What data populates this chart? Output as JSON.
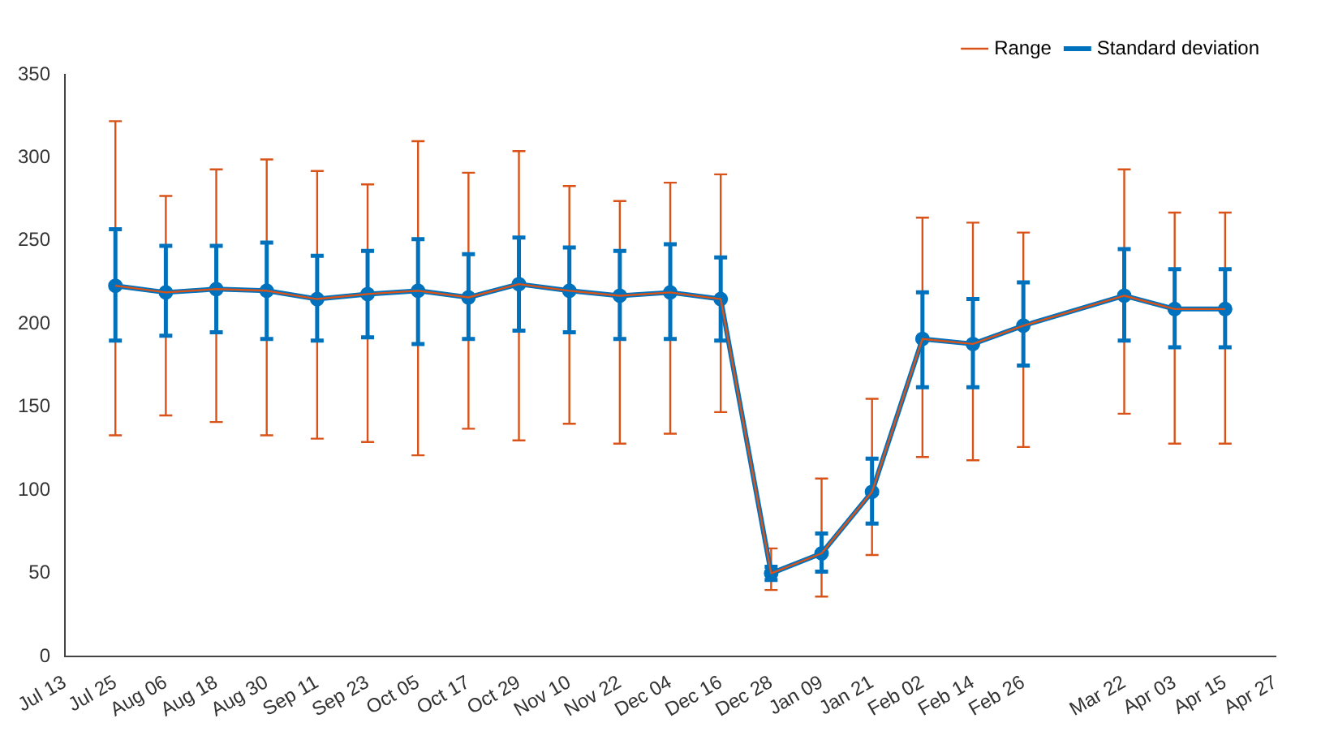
{
  "chart_data": {
    "type": "line",
    "categories": [
      "Jul 13",
      "Jul 25",
      "Aug 06",
      "Aug 18",
      "Aug 30",
      "Sep 11",
      "Sep 23",
      "Oct 05",
      "Oct 17",
      "Oct 29",
      "Nov 10",
      "Nov 22",
      "Dec 04",
      "Dec 16",
      "Dec 28",
      "Jan 09",
      "Jan 21",
      "Feb 02",
      "Feb 14",
      "Feb 26",
      null,
      "Mar 22",
      "Apr 03",
      "Apr 15",
      "Apr 27"
    ],
    "series": [
      {
        "name": "Standard deviation",
        "color": "#0072bd",
        "marker": "circle",
        "values": [
          null,
          223,
          219,
          221,
          220,
          215,
          218,
          220,
          216,
          224,
          220,
          217,
          219,
          215,
          50,
          62,
          99,
          191,
          188,
          199,
          null,
          217,
          209,
          209,
          null
        ],
        "errors": [
          null,
          [
            190,
            257
          ],
          [
            193,
            247
          ],
          [
            195,
            247
          ],
          [
            191,
            249
          ],
          [
            190,
            241
          ],
          [
            192,
            244
          ],
          [
            188,
            251
          ],
          [
            191,
            242
          ],
          [
            196,
            252
          ],
          [
            195,
            246
          ],
          [
            191,
            244
          ],
          [
            191,
            248
          ],
          [
            190,
            240
          ],
          [
            46,
            54
          ],
          [
            51,
            74
          ],
          [
            80,
            119
          ],
          [
            162,
            219
          ],
          [
            162,
            215
          ],
          [
            175,
            225
          ],
          null,
          [
            190,
            245
          ],
          [
            186,
            233
          ],
          [
            186,
            233
          ],
          null
        ]
      },
      {
        "name": "Range",
        "color": "#d95319",
        "marker": "none",
        "values": [
          null,
          223,
          219,
          221,
          220,
          215,
          218,
          220,
          216,
          224,
          220,
          217,
          219,
          215,
          50,
          62,
          99,
          191,
          188,
          199,
          null,
          217,
          209,
          209,
          null
        ],
        "errors": [
          null,
          [
            133,
            322
          ],
          [
            145,
            277
          ],
          [
            141,
            293
          ],
          [
            133,
            299
          ],
          [
            131,
            292
          ],
          [
            129,
            284
          ],
          [
            121,
            310
          ],
          [
            137,
            291
          ],
          [
            130,
            304
          ],
          [
            140,
            283
          ],
          [
            128,
            274
          ],
          [
            134,
            285
          ],
          [
            147,
            290
          ],
          [
            40,
            65
          ],
          [
            36,
            107
          ],
          [
            61,
            155
          ],
          [
            120,
            264
          ],
          [
            118,
            261
          ],
          [
            126,
            255
          ],
          null,
          [
            146,
            293
          ],
          [
            128,
            267
          ],
          [
            128,
            267
          ],
          null
        ]
      }
    ],
    "ylim": [
      0,
      350
    ],
    "yticks": [
      0,
      50,
      100,
      150,
      200,
      250,
      300,
      350
    ],
    "grid": false,
    "legend": "top right",
    "line_style": "solid"
  }
}
